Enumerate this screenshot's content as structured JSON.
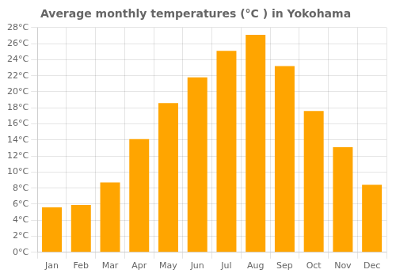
{
  "chart_data": {
    "type": "bar",
    "title": "Average monthly temperatures (°C ) in Yokohama",
    "categories": [
      "Jan",
      "Feb",
      "Mar",
      "Apr",
      "May",
      "Jun",
      "Jul",
      "Aug",
      "Sep",
      "Oct",
      "Nov",
      "Dec"
    ],
    "values": [
      5.6,
      5.9,
      8.7,
      14.1,
      18.6,
      21.8,
      25.1,
      27.1,
      23.2,
      17.6,
      13.1,
      8.4
    ],
    "color": "#FFA500",
    "ylim": [
      0,
      28
    ],
    "yticks": [
      {
        "value": 0,
        "label": "0°C"
      },
      {
        "value": 2,
        "label": "2°C"
      },
      {
        "value": 4,
        "label": "4°C"
      },
      {
        "value": 6,
        "label": "6°C"
      },
      {
        "value": 8,
        "label": "8°C"
      },
      {
        "value": 10,
        "label": "10°C"
      },
      {
        "value": 12,
        "label": "12°C"
      },
      {
        "value": 14,
        "label": "14°C"
      },
      {
        "value": 16,
        "label": "16°C"
      },
      {
        "value": 18,
        "label": "18°C"
      },
      {
        "value": 20,
        "label": "20°C"
      },
      {
        "value": 22,
        "label": "22°C"
      },
      {
        "value": 24,
        "label": "24°C"
      },
      {
        "value": 26,
        "label": "26°C"
      },
      {
        "value": 28,
        "label": "28°C"
      }
    ],
    "grid": true
  }
}
